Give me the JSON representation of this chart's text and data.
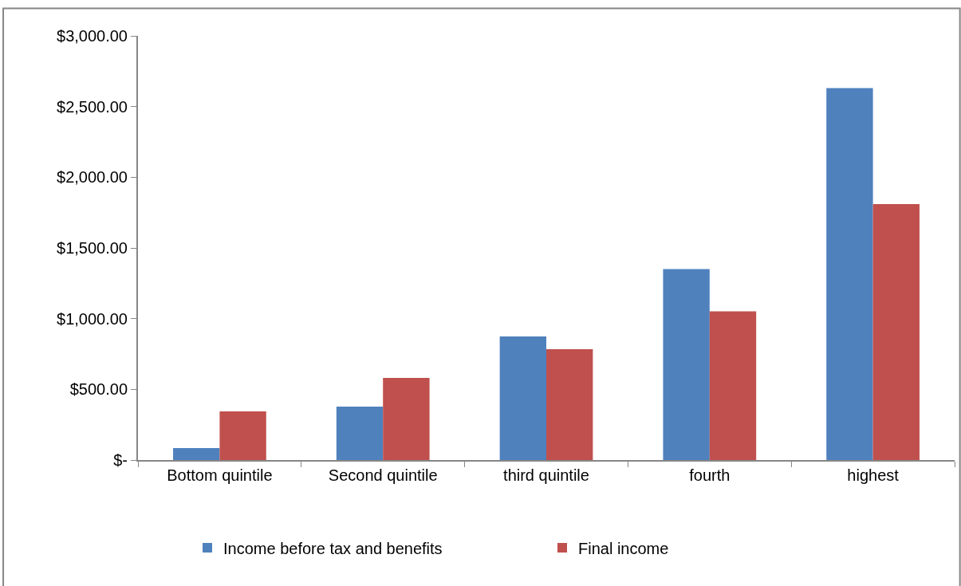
{
  "chart_data": {
    "type": "bar",
    "categories": [
      "Bottom quintile",
      "Second quintile",
      "third quintile",
      "fourth",
      "highest"
    ],
    "series": [
      {
        "name": "Income before tax and benefits",
        "color": "#4f81bd",
        "values": [
          85,
          378,
          874,
          1350,
          2630
        ]
      },
      {
        "name": "Final income",
        "color": "#c0504d",
        "values": [
          344,
          581,
          784,
          1052,
          1810
        ]
      }
    ],
    "ylim": [
      0,
      3000
    ],
    "yticks": [
      {
        "value": 0,
        "label": "$-"
      },
      {
        "value": 500,
        "label": "$500.00"
      },
      {
        "value": 1000,
        "label": "$1,000.00"
      },
      {
        "value": 1500,
        "label": "$1,500.00"
      },
      {
        "value": 2000,
        "label": "$2,000.00"
      },
      {
        "value": 2500,
        "label": "$2,500.00"
      },
      {
        "value": 3000,
        "label": "$3,000.00"
      }
    ],
    "grid": false,
    "legend": "bottom"
  }
}
